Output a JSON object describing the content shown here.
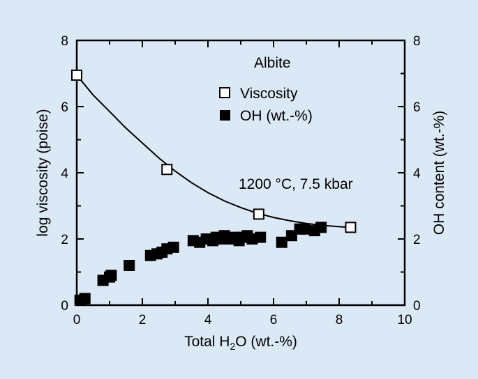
{
  "chart_data": {
    "type": "scatter",
    "annotations": {
      "material": "Albite",
      "conditions": "1200 °C, 7.5 kbar"
    },
    "xlabel_parts": {
      "pre": "Total H",
      "sub": "2",
      "post": "O (wt.-%)"
    },
    "ylabel": "log viscosity (poise)",
    "y2label": "OH content (wt.-%)",
    "xlim": [
      0,
      10
    ],
    "ylim": [
      0,
      8
    ],
    "y2lim": [
      0,
      8
    ],
    "xticks": [
      0,
      2,
      4,
      6,
      8,
      10
    ],
    "yticks": [
      0,
      2,
      4,
      6,
      8
    ],
    "y2ticks": [
      0,
      2,
      4,
      6,
      8
    ],
    "grid": false,
    "legend_position": "top-right",
    "colors": {
      "background": "#dbe8f5",
      "ink": "#000000"
    },
    "series": [
      {
        "name": "Viscosity",
        "marker": "open-square",
        "axis": "left",
        "x": [
          0,
          2.75,
          5.55,
          8.35
        ],
        "y": [
          6.95,
          4.1,
          2.75,
          2.35
        ]
      },
      {
        "name": "OH (wt.-%)",
        "marker": "filled-square",
        "axis": "right",
        "x": [
          0.1,
          0.25,
          0.8,
          1.0,
          1.05,
          1.6,
          2.25,
          2.45,
          2.6,
          2.75,
          2.95,
          3.55,
          3.75,
          3.95,
          4.05,
          4.15,
          4.25,
          4.4,
          4.5,
          4.65,
          4.8,
          4.95,
          5.05,
          5.2,
          5.35,
          5.6,
          6.25,
          6.55,
          6.8,
          6.95,
          7.25,
          7.45
        ],
        "y": [
          0.15,
          0.2,
          0.75,
          0.85,
          0.9,
          1.2,
          1.5,
          1.55,
          1.6,
          1.7,
          1.75,
          1.95,
          1.9,
          2.0,
          2.0,
          1.95,
          2.05,
          2.0,
          2.1,
          2.0,
          2.05,
          1.95,
          2.05,
          2.1,
          2.0,
          2.05,
          1.9,
          2.1,
          2.3,
          2.3,
          2.25,
          2.35
        ]
      }
    ],
    "fit_curve": {
      "series": "Viscosity",
      "x": [
        0,
        0.5,
        1,
        1.5,
        2,
        2.5,
        3,
        3.5,
        4,
        4.5,
        5,
        5.5,
        6,
        6.5,
        7,
        7.5,
        8,
        8.35
      ],
      "y": [
        6.95,
        6.35,
        5.85,
        5.35,
        4.9,
        4.45,
        4.05,
        3.7,
        3.4,
        3.15,
        2.95,
        2.78,
        2.65,
        2.55,
        2.47,
        2.41,
        2.37,
        2.35
      ]
    }
  }
}
